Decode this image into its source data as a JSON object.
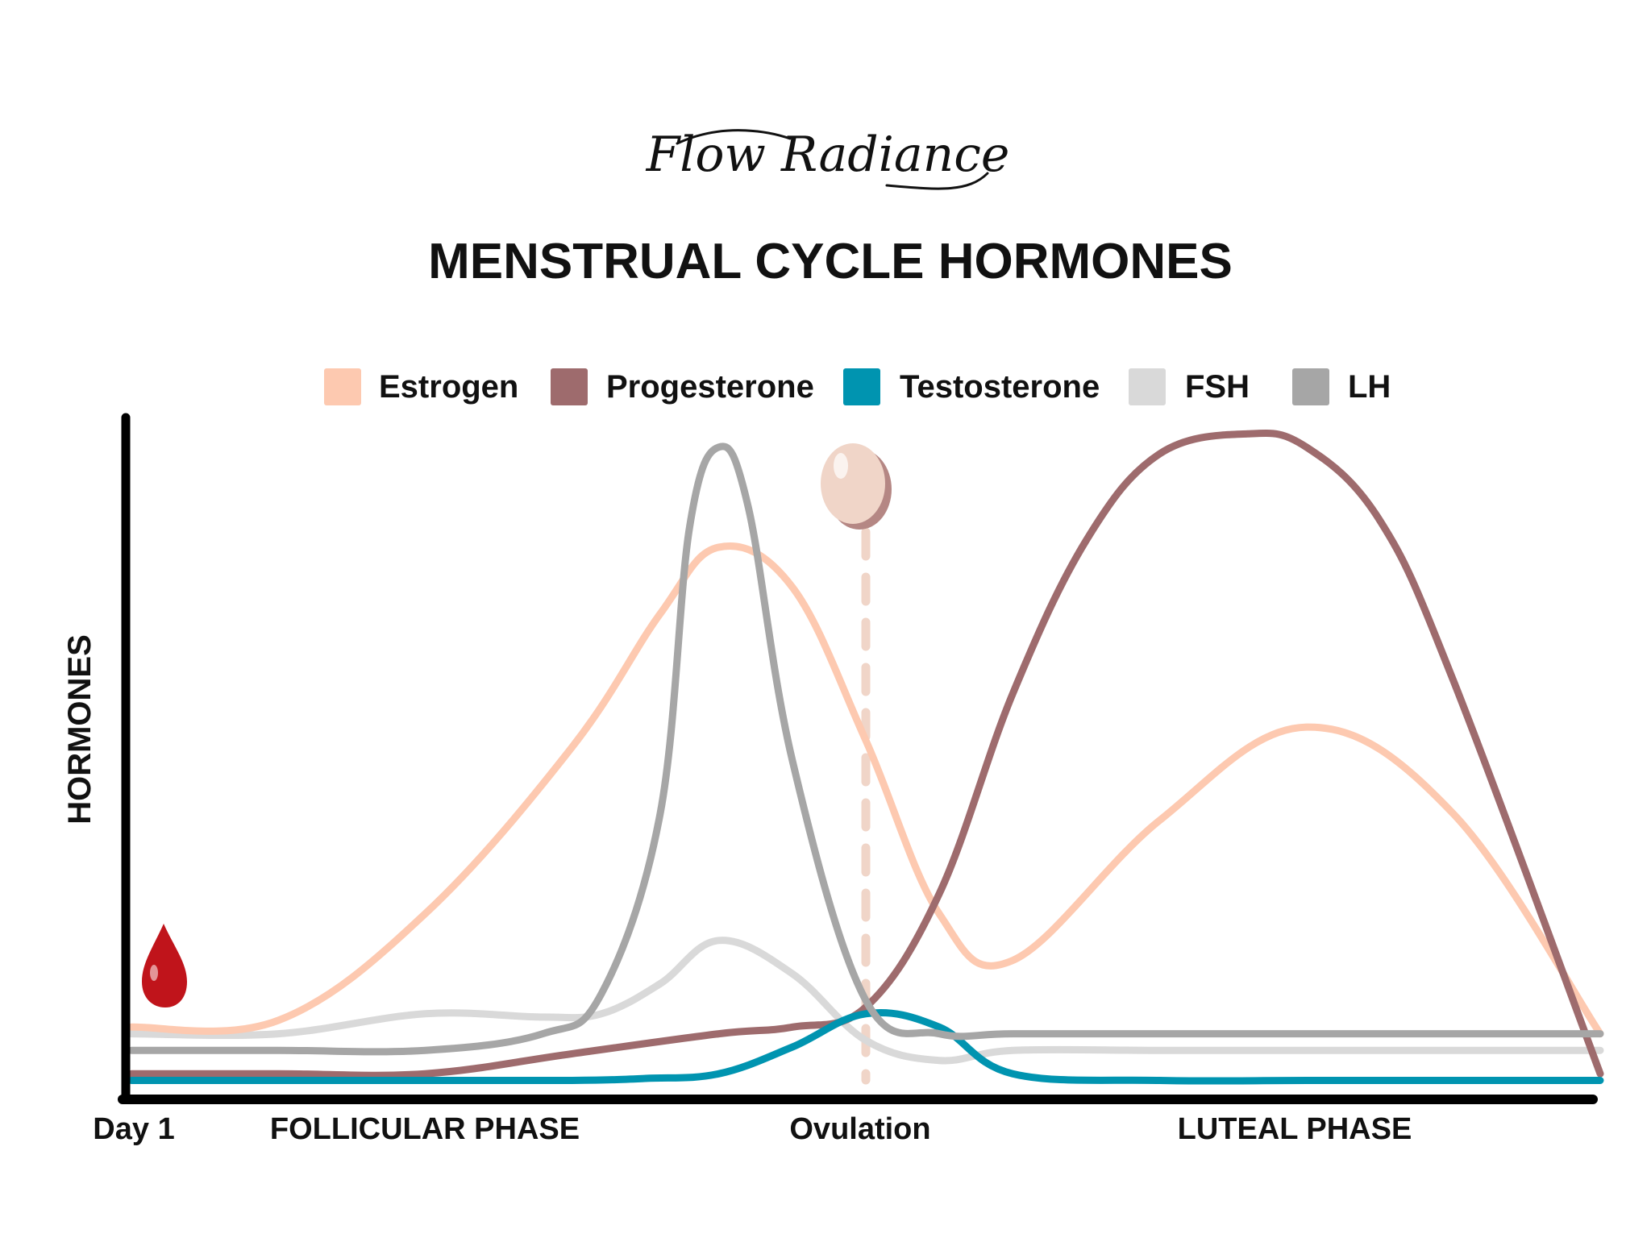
{
  "logo": {
    "text": "Flow Radiance"
  },
  "chart_data": {
    "type": "line",
    "title": "MENSTRUAL CYCLE HORMONES",
    "ylabel": "HORMONES",
    "xlabel": "",
    "x_labels": {
      "start": "Day 1",
      "follicular": "FOLLICULAR PHASE",
      "ovulation": "Ovulation",
      "luteal": "LUTEAL PHASE"
    },
    "xlim": [
      0,
      100
    ],
    "ylim": [
      0,
      100
    ],
    "ovulation_x": 50,
    "grid": false,
    "legend_position": "top",
    "series": [
      {
        "name": "Estrogen",
        "color": "#fdc9b0",
        "x": [
          0,
          10,
          20,
          30,
          36,
          40,
          45,
          50,
          55,
          60,
          70,
          80,
          90,
          100
        ],
        "y": [
          10,
          11,
          27,
          52,
          72,
          82,
          76,
          53,
          27,
          20,
          41,
          55,
          42,
          9
        ]
      },
      {
        "name": "Progesterone",
        "color": "#9e6b6d",
        "x": [
          0,
          10,
          20,
          30,
          40,
          45,
          50,
          55,
          60,
          65,
          70,
          76,
          80,
          85,
          90,
          100
        ],
        "y": [
          3,
          3,
          3,
          6,
          9,
          10,
          13,
          30,
          60,
          83,
          96,
          99,
          97,
          86,
          62,
          3
        ]
      },
      {
        "name": "Testosterone",
        "color": "#0094b0",
        "x": [
          0,
          10,
          20,
          30,
          35,
          40,
          45,
          50,
          55,
          60,
          70,
          80,
          90,
          100
        ],
        "y": [
          2,
          2,
          2,
          2,
          2.3,
          3,
          7,
          12,
          10,
          3,
          2,
          2,
          2,
          2
        ]
      },
      {
        "name": "FSH",
        "color": "#d9d9d9",
        "x": [
          0,
          10,
          20,
          28,
          32,
          36,
          40,
          45,
          50,
          55,
          60,
          70,
          80,
          90,
          100
        ],
        "y": [
          9,
          9,
          12,
          11.5,
          12,
          16.5,
          23,
          18,
          8,
          5,
          6.5,
          6.5,
          6.5,
          6.5,
          6.5
        ]
      },
      {
        "name": "LH",
        "color": "#a6a6a6",
        "x": [
          0,
          10,
          20,
          28,
          32,
          36,
          38,
          40,
          42,
          45,
          50,
          55,
          60,
          70,
          80,
          90,
          100
        ],
        "y": [
          6.5,
          6.5,
          6.5,
          9,
          15,
          42,
          85,
          97,
          88,
          50,
          14,
          9,
          9,
          9,
          9,
          9,
          9
        ]
      }
    ]
  }
}
